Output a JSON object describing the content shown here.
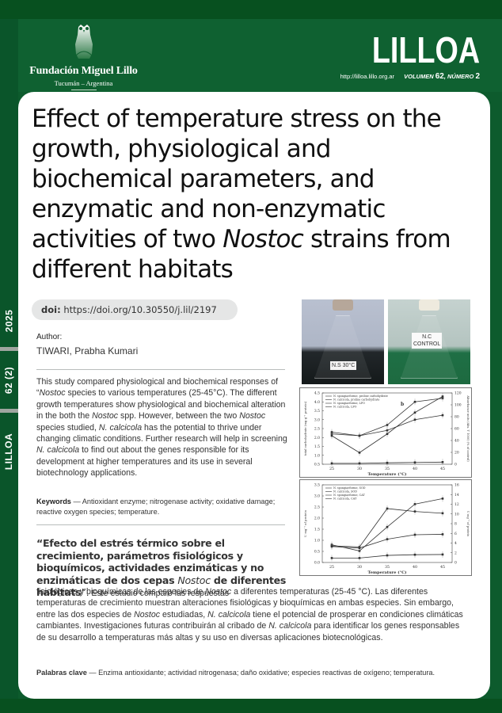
{
  "header": {
    "foundation_name": "Fundación Miguel Lillo",
    "foundation_location": "Tucumán – Argentina",
    "journal": "LILLOA",
    "url": "http://lilloa.lillo.org.ar",
    "volume_label": "VOLUMEN",
    "volume": "62",
    "number_label": "NÚMERO",
    "number": "2",
    "colors": {
      "primary_green": "#0f6131",
      "dark_green": "#07501f",
      "sidebar_gray": "#9fa6a0"
    }
  },
  "sidebar": {
    "year": "2025",
    "issue": "62 (2)",
    "journal": "LILLOA"
  },
  "article": {
    "title_part1": "Effect of temperature stress on the growth, physiological and biochemical parameters, and enzymatic and non-enzymatic activities of two ",
    "title_italic": "Nostoc",
    "title_part2": " strains from different habitats",
    "doi_label": "doi:",
    "doi_value": "https://doi.org/10.30550/j.lil/2197",
    "author_label": "Author:",
    "author_name": "TIWARI, Prabha Kumari",
    "abstract_en": [
      {
        "t": "This study compared physiological and biochemical responses of “"
      },
      {
        "i": "Nostoc"
      },
      {
        "t": " species to various temperatures (25-45°C). The different growth temperatures show physiological and biochemical alteration in the both the "
      },
      {
        "i": "Nostoc"
      },
      {
        "t": " spp. However, between the two "
      },
      {
        "i": "Nostoc"
      },
      {
        "t": " species studied, "
      },
      {
        "i": "N. calcicola"
      },
      {
        "t": " has the potential to thrive under changing climatic conditions. Further research will help in screening "
      },
      {
        "i": "N. calcicola"
      },
      {
        "t": " to find out about the genes responsible for its development at higher temperatures and its use in several biotechnology applications."
      }
    ],
    "keywords_label": "Keywords",
    "keywords": " — Antioxidant enzyme; nitrogenase activity; oxidative damage; reactive oxygen species; temperature.",
    "title_es_part1": "“Efecto del estrés térmico sobre el crecimiento, parámetros fisiológicos y bioquímicos, actividades enzimáticas y no enzimáticas de dos cepas ",
    "title_es_italic": "Nostoc",
    "title_es_part2": " de diferentes habitats",
    "title_es_close": "”.",
    "abstract_es_lead": " Este estudio comparó las respuestas",
    "abstract_es": [
      {
        "t": "fisiológicas y bioquímicas de las especies de "
      },
      {
        "i": "Nostoc"
      },
      {
        "t": " a diferentes temperaturas (25-45 °C). Las diferentes temperaturas de crecimiento muestran alteraciones fisiológicas y bioquímicas en ambas especies. Sin embargo, entre las dos especies de "
      },
      {
        "i": "Nostoc"
      },
      {
        "t": " estudiadas, "
      },
      {
        "i": "N. calcicola"
      },
      {
        "t": " tiene el potencial de prosperar en condiciones climáticas cambiantes. Investigaciones futuras contribuirán al cribado de "
      },
      {
        "i": "N. calcicola"
      },
      {
        "t": " para identificar los genes responsables de su desarrollo a temperaturas más altas y su uso en diversas aplicaciones biotecnológicas."
      }
    ],
    "palabras_label": "Palabras clave",
    "palabras": " — Enzima antioxidante; actividad nitrogenasa; daño oxidative; especies reactivas de oxígeno; temperatura."
  },
  "figures": {
    "photo1_label": "N.S 30°C",
    "photo2_label_line1": "N.C",
    "photo2_label_line2": "CONTROL"
  },
  "chart_data": [
    {
      "type": "line",
      "title": "",
      "panel_label": "b",
      "xlabel": "Temperature (°C)",
      "ylabel": "total carbohydrate (mg g⁻¹ protein)",
      "ylabel_right": "Absorbance units (Abs. T 1000) (% of control)",
      "x": [
        25,
        30,
        35,
        40,
        45
      ],
      "ylim": [
        0.5,
        4.5
      ],
      "ylim_right": [
        0,
        120
      ],
      "yticks": [
        "0.5",
        "1.0",
        "1.5",
        "2.0",
        "2.5",
        "3.0",
        "3.5",
        "4.0",
        "4.5"
      ],
      "yticks_right": [
        "0",
        "20",
        "40",
        "60",
        "80",
        "100",
        "120"
      ],
      "legend": [
        "N. spongiaeforme, proline carbohydrate",
        "N. calcicola, proline carbohydrate",
        "N. spongiaeforme, LPO",
        "N. calcicola, LPO"
      ],
      "series": [
        {
          "name": "N. spongiaeforme",
          "values": [
            2.2,
            2.1,
            2.7,
            4.0,
            4.2
          ]
        },
        {
          "name": "N. calcicola",
          "values": [
            2.3,
            2.1,
            2.4,
            3.0,
            3.25
          ]
        },
        {
          "name": "N. spongiaeforme LPO",
          "values": [
            2.1,
            1.15,
            2.2,
            3.4,
            4.3
          ]
        },
        {
          "name": "N. calcicola LPO",
          "values": [
            0.55,
            0.55,
            0.58,
            0.6,
            0.62
          ]
        }
      ],
      "grid": false
    },
    {
      "type": "line",
      "title": "",
      "xlabel": "Temperature (°C)",
      "ylabel": "U mg⁻¹ of protein",
      "ylabel_right": "U mg⁻¹ of protein",
      "x": [
        25,
        30,
        35,
        40,
        45
      ],
      "ylim": [
        0.0,
        3.5
      ],
      "ylim_right": [
        0,
        16
      ],
      "yticks": [
        "0.0",
        "0.5",
        "1.0",
        "1.5",
        "2.0",
        "2.5",
        "3.0",
        "3.5"
      ],
      "yticks_right": [
        "0",
        "2",
        "4",
        "6",
        "8",
        "10",
        "12",
        "14",
        "16"
      ],
      "legend": [
        "N. spongiaeforme, SOD",
        "N. calcicola, SOD",
        "N. spongiaeforme, CAT",
        "N. calcicola, CAT"
      ],
      "series": [
        {
          "name": "N. spongiaeforme, SOD",
          "values": [
            0.75,
            0.7,
            2.43,
            2.3,
            2.22
          ]
        },
        {
          "name": "N. calcicola, SOD",
          "values": [
            0.8,
            0.52,
            1.6,
            2.63,
            2.88
          ]
        },
        {
          "name": "N. spongiaeforme, CAT",
          "values": [
            0.72,
            0.65,
            1.05,
            1.25,
            1.27
          ]
        },
        {
          "name": "N. calcicola, CAT",
          "values": [
            0.2,
            0.2,
            0.32,
            0.35,
            0.36
          ]
        }
      ],
      "grid": false
    }
  ]
}
